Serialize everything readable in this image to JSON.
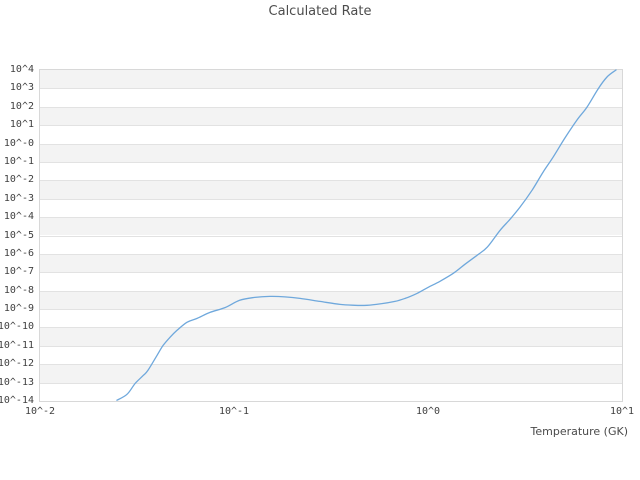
{
  "chart_data": {
    "type": "line",
    "title": "Calculated Rate",
    "xlabel": "Temperature (GK)",
    "ylabel": "",
    "x_scale": "log",
    "y_scale": "log",
    "x_log_range": [
      -2,
      1
    ],
    "y_log_range": [
      -14,
      4
    ],
    "x_tick_labels": [
      "10^-2",
      "10^-1",
      "10^0",
      "10^1"
    ],
    "x_tick_exponents": [
      -2,
      -1,
      0,
      1
    ],
    "y_tick_labels": [
      "10^4",
      "10^3",
      "10^2",
      "10^1",
      "10^-0",
      "10^-1",
      "10^-2",
      "10^-3",
      "10^-4",
      "10^-5",
      "10^-6",
      "10^-7",
      "10^-8",
      "10^-9",
      "10^-10",
      "10^-11",
      "10^-12",
      "10^-13",
      "10^-14"
    ],
    "y_tick_exponents": [
      4,
      3,
      2,
      1,
      0,
      -1,
      -2,
      -3,
      -4,
      -5,
      -6,
      -7,
      -8,
      -9,
      -10,
      -11,
      -12,
      -13,
      -14
    ],
    "grid": "horizontal-bands",
    "legend": "none",
    "colors": {
      "band": "#f3f3f3",
      "band_alt": "#ffffff",
      "gridline": "#e2e2e2",
      "border": "#d8d8d8",
      "line": "#6fa8dc",
      "text": "#404040",
      "title_text": "#4d4d4d"
    },
    "series": [
      {
        "name": "calculated-rate",
        "color": "#6fa8dc",
        "points": [
          [
            0.0249,
            1.1e-14
          ],
          [
            0.0281,
            2.3e-14
          ],
          [
            0.0309,
            8.9e-14
          ],
          [
            0.034,
            2.4e-13
          ],
          [
            0.036,
            4.6e-13
          ],
          [
            0.0401,
            3e-12
          ],
          [
            0.0431,
            1.05e-11
          ],
          [
            0.0468,
            2.9e-11
          ],
          [
            0.0508,
            6.9e-11
          ],
          [
            0.0572,
            1.9e-10
          ],
          [
            0.0645,
            3.1e-10
          ],
          [
            0.0752,
            6.6e-10
          ],
          [
            0.0899,
            1.2e-09
          ],
          [
            0.107,
            3e-09
          ],
          [
            0.128,
            4.3e-09
          ],
          [
            0.153,
            4.9e-09
          ],
          [
            0.183,
            4.6e-09
          ],
          [
            0.219,
            3.8e-09
          ],
          [
            0.277,
            2.6e-09
          ],
          [
            0.352,
            1.8e-09
          ],
          [
            0.42,
            1.6e-09
          ],
          [
            0.485,
            1.6e-09
          ],
          [
            0.566,
            1.9e-09
          ],
          [
            0.676,
            2.6e-09
          ],
          [
            0.762,
            3.8e-09
          ],
          [
            0.878,
            7.1e-09
          ],
          [
            1.0,
            1.5e-08
          ],
          [
            1.15,
            3.2e-08
          ],
          [
            1.35,
            8.8e-08
          ],
          [
            1.55,
            2.7e-07
          ],
          [
            1.79,
            8.4e-07
          ],
          [
            2.02,
            2.3e-06
          ],
          [
            2.35,
            1.9e-05
          ],
          [
            2.65,
            7.7e-05
          ],
          [
            2.98,
            0.00035
          ],
          [
            3.44,
            0.0029
          ],
          [
            3.92,
            0.028
          ],
          [
            4.41,
            0.18
          ],
          [
            5.08,
            2.0
          ],
          [
            5.86,
            19
          ],
          [
            6.6,
            96
          ],
          [
            7.52,
            920
          ],
          [
            8.37,
            4150
          ],
          [
            9.31,
            10000.0
          ]
        ]
      }
    ]
  }
}
